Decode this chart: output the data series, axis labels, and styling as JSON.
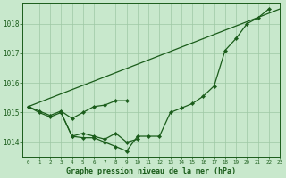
{
  "title": "Graphe pression niveau de la mer (hPa)",
  "background_color": "#c8e8cc",
  "grid_color": "#9ec8a4",
  "line_color": "#1a5c1a",
  "xlim": [
    -0.5,
    23
  ],
  "ylim": [
    1013.5,
    1018.7
  ],
  "yticks": [
    1014,
    1015,
    1016,
    1017,
    1018
  ],
  "xtick_labels": [
    "0",
    "1",
    "2",
    "3",
    "4",
    "5",
    "6",
    "7",
    "8",
    "9",
    "10",
    "11",
    "12",
    "13",
    "14",
    "15",
    "16",
    "17",
    "18",
    "19",
    "20",
    "21",
    "22",
    "23"
  ],
  "series": [
    {
      "x": [
        0,
        1,
        2,
        3,
        4,
        5,
        6,
        7,
        8,
        9,
        10,
        11,
        12,
        13,
        14,
        15,
        16,
        17,
        18,
        19,
        20,
        21,
        22
      ],
      "y": [
        1015.2,
        1015.0,
        1014.85,
        1015.0,
        1014.2,
        1014.15,
        1014.15,
        1014.0,
        1013.85,
        1013.7,
        1014.2,
        1014.2,
        1014.2,
        1015.0,
        1015.15,
        1015.3,
        1015.55,
        1015.9,
        1017.1,
        1017.5,
        1018.0,
        1018.2,
        1018.5
      ],
      "marker": true
    },
    {
      "x": [
        0,
        1,
        2,
        3,
        4,
        5,
        6,
        7,
        8,
        9
      ],
      "y": [
        1015.2,
        1015.05,
        1014.9,
        1015.05,
        1014.8,
        1015.0,
        1015.2,
        1015.25,
        1015.4,
        1015.4
      ],
      "marker": true
    },
    {
      "x": [
        0,
        23
      ],
      "y": [
        1015.2,
        1018.5
      ],
      "marker": false
    },
    {
      "x": [
        3,
        4,
        5,
        6,
        7,
        8,
        9,
        10
      ],
      "y": [
        1015.0,
        1014.2,
        1014.3,
        1014.2,
        1014.1,
        1014.3,
        1014.0,
        1014.1
      ],
      "marker": true
    }
  ]
}
